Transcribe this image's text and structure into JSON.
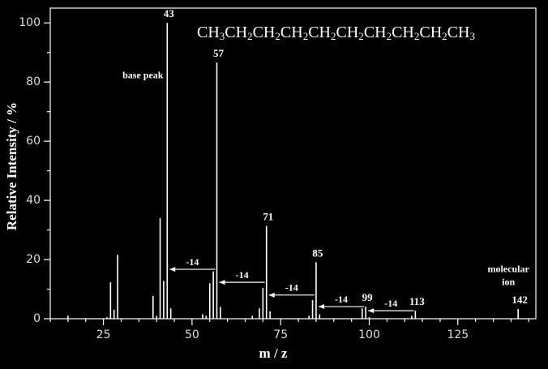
{
  "chart_data": {
    "type": "bar",
    "formula": "CH3CH2CH2CH2CH2CH2CH2CH2CH2CH3",
    "x_label": "m / z",
    "y_label": "Relative Intensity / %",
    "x": [
      15,
      26,
      27,
      28,
      29,
      39,
      40,
      41,
      42,
      43,
      44,
      53,
      54,
      55,
      56,
      57,
      58,
      67,
      69,
      70,
      71,
      72,
      83,
      84,
      85,
      86,
      98,
      99,
      100,
      112,
      113,
      142
    ],
    "values": [
      1,
      0.5,
      12.3,
      3,
      21.6,
      7.7,
      1,
      34,
      12.8,
      100,
      3.5,
      1.5,
      1,
      12,
      16,
      86.6,
      4,
      1,
      3.5,
      10.4,
      31.4,
      2.5,
      1,
      6.3,
      19.1,
      1.5,
      3.5,
      4.1,
      0.5,
      1,
      2.7,
      3.3
    ],
    "color": "#ffffff",
    "labeled_peaks": [
      43,
      57,
      71,
      85,
      99,
      113,
      142
    ],
    "losses": [
      {
        "label": -14,
        "from": 57,
        "to": 43,
        "y": 16.7
      },
      {
        "label": -14,
        "from": 71,
        "to": 57,
        "y": 12.3
      },
      {
        "label": -14,
        "from": 85,
        "to": 71,
        "y": 8
      },
      {
        "label": -14,
        "from": 99,
        "to": 85,
        "y": 4.1
      },
      {
        "label": -14,
        "from": 113,
        "to": 99,
        "y": 2.7
      }
    ],
    "annotations": [
      {
        "lines": [
          "base peak"
        ],
        "peak": 43
      },
      {
        "lines": [
          "molecular",
          "ion"
        ],
        "peak": 142
      }
    ],
    "xlim": [
      10,
      147
    ],
    "xticks": [
      25,
      50,
      75,
      100,
      125
    ],
    "xminorticks": [
      10,
      15,
      20,
      30,
      35,
      40,
      45,
      55,
      60,
      65,
      70,
      80,
      85,
      90,
      95,
      105,
      110,
      115,
      120,
      130,
      135,
      140,
      145
    ],
    "ylim": [
      0,
      105
    ],
    "yticks": [
      0,
      20,
      40,
      60,
      80,
      100
    ],
    "yminorticks": [
      10,
      30,
      50,
      70,
      90
    ]
  }
}
